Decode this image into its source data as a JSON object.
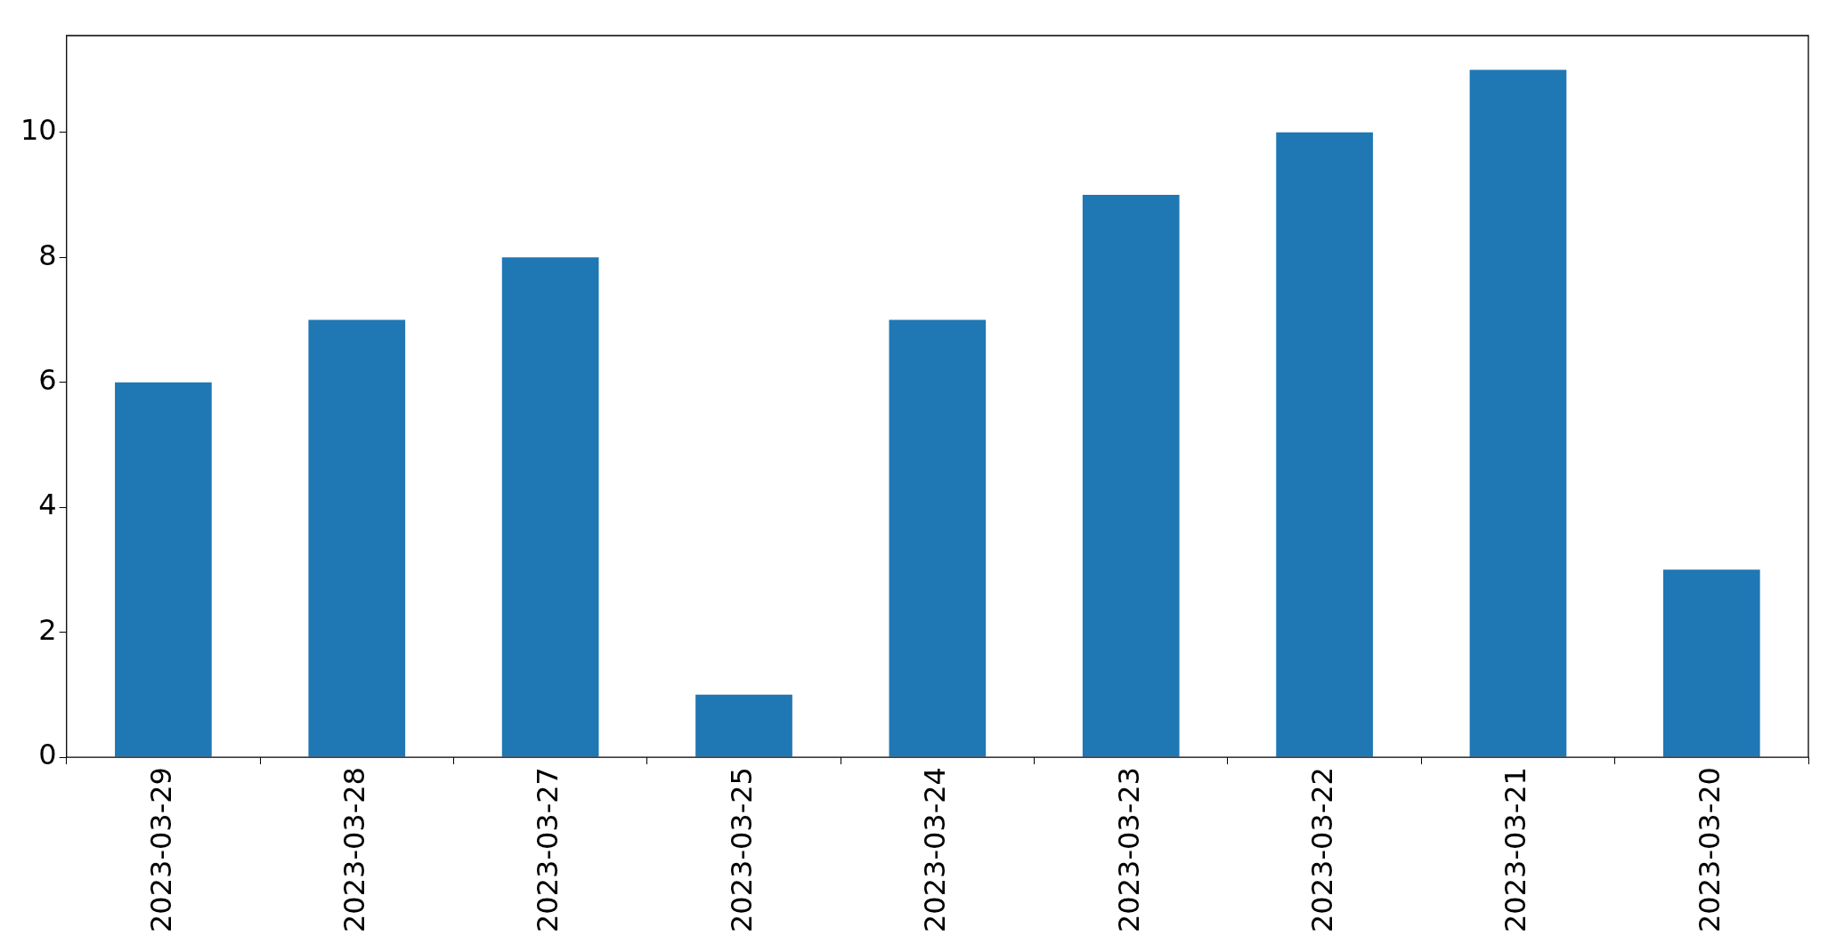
{
  "chart_data": {
    "type": "bar",
    "categories": [
      "2023-03-29",
      "2023-03-28",
      "2023-03-27",
      "2023-03-25",
      "2023-03-24",
      "2023-03-23",
      "2023-03-22",
      "2023-03-21",
      "2023-03-20"
    ],
    "values": [
      6,
      7,
      8,
      1,
      7,
      9,
      10,
      11,
      3
    ],
    "color": "#1f77b4",
    "ylim": [
      0,
      11.55
    ],
    "yticks": [
      0,
      2,
      4,
      6,
      8,
      10
    ],
    "grid": false,
    "legend": false
  }
}
